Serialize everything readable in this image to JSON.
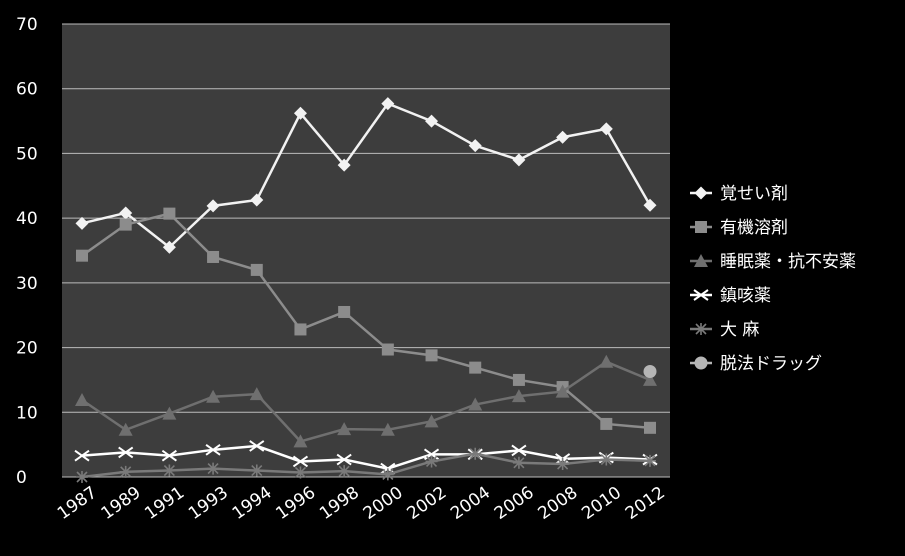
{
  "chart_data": {
    "type": "line",
    "title": "",
    "xlabel": "",
    "ylabel": "",
    "categories": [
      "1987",
      "1989",
      "1991",
      "1993",
      "1994",
      "1996",
      "1998",
      "2000",
      "2002",
      "2004",
      "2006",
      "2008",
      "2010",
      "2012"
    ],
    "ylim": [
      0,
      70
    ],
    "yticks": [
      "0",
      "10",
      "20",
      "30",
      "40",
      "50",
      "60",
      "70"
    ],
    "grid": true,
    "legend_position": "right",
    "colors": {
      "background": "#000000",
      "plot_area": "#3d3d3d",
      "grid": "#bdbdbd",
      "axis_text": "#ffffff"
    },
    "series": [
      {
        "name": "覚せい剤",
        "marker": "diamond",
        "color": "#f2f2f2",
        "values": [
          39.2,
          40.8,
          35.5,
          41.9,
          42.8,
          56.2,
          48.2,
          57.7,
          55.0,
          51.2,
          49.0,
          52.5,
          53.8,
          42.0
        ]
      },
      {
        "name": "有機溶剤",
        "marker": "square",
        "color": "#8c8c8c",
        "values": [
          34.2,
          39.0,
          40.7,
          34.0,
          32.0,
          22.8,
          25.5,
          19.7,
          18.8,
          16.9,
          15.0,
          13.9,
          8.2,
          7.6
        ]
      },
      {
        "name": "睡眠薬・抗不安薬",
        "marker": "triangle",
        "color": "#6f6f6f",
        "values": [
          11.9,
          7.3,
          9.8,
          12.4,
          12.8,
          5.5,
          7.4,
          7.3,
          8.6,
          11.2,
          12.5,
          13.2,
          17.8,
          15.0
        ]
      },
      {
        "name": "鎮咳薬",
        "marker": "x",
        "color": "#ffffff",
        "values": [
          3.3,
          3.8,
          3.3,
          4.2,
          4.8,
          2.4,
          2.7,
          1.3,
          3.5,
          3.5,
          4.1,
          2.8,
          3.0,
          2.7
        ]
      },
      {
        "name": "大 麻",
        "marker": "star",
        "color": "#7a7a7a",
        "values": [
          0.0,
          0.8,
          1.0,
          1.3,
          1.0,
          0.7,
          0.9,
          0.4,
          2.4,
          3.6,
          2.2,
          2.0,
          2.7,
          2.5
        ]
      },
      {
        "name": "脱法ドラッグ",
        "marker": "circle",
        "color": "#b5b5b5",
        "values": [
          null,
          null,
          null,
          null,
          null,
          null,
          null,
          null,
          null,
          null,
          null,
          null,
          null,
          16.3
        ]
      }
    ]
  }
}
